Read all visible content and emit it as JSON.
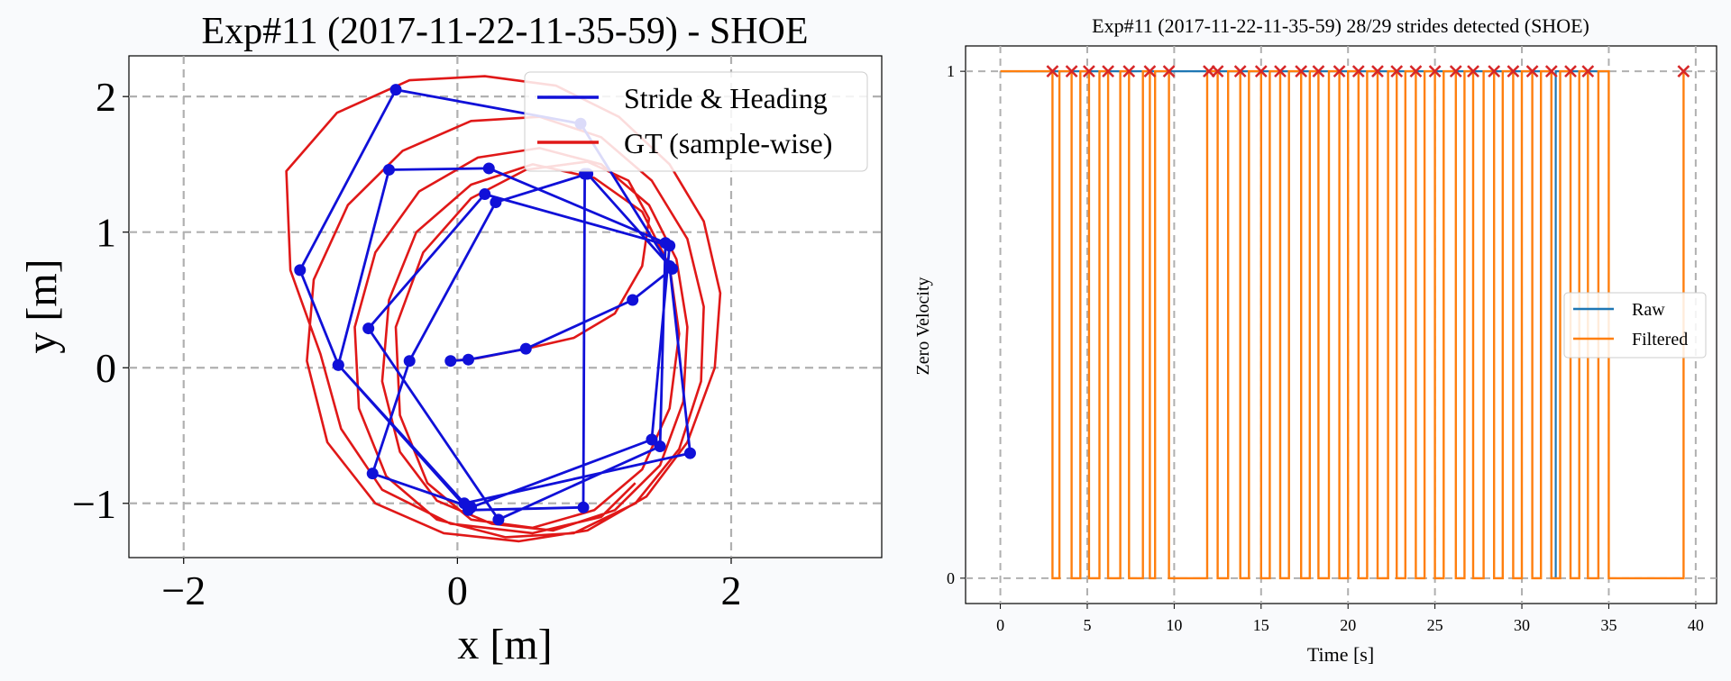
{
  "chart_data": [
    {
      "type": "line",
      "title": "Exp#11 (2017-11-22-11-35-59) - SHOE",
      "xlabel": "x [m]",
      "ylabel": "y [m]",
      "xlim": [
        -2.4,
        3.1
      ],
      "ylim": [
        -1.4,
        2.3
      ],
      "xticks": [
        -2,
        0,
        2
      ],
      "xtick_labels": [
        "−2",
        "0",
        "2"
      ],
      "yticks": [
        -1,
        0,
        1,
        2
      ],
      "ytick_labels": [
        "−1",
        "0",
        "1",
        "2"
      ],
      "grid": true,
      "legend_position": "top-right",
      "colors": {
        "stride": "#1010d8",
        "gt": "#e01818"
      },
      "series": [
        {
          "name": "Stride & Heading",
          "markers": true,
          "points": [
            [
              -0.05,
              0.05
            ],
            [
              0.08,
              0.06
            ],
            [
              0.5,
              0.14
            ],
            [
              1.28,
              0.5
            ],
            [
              1.57,
              0.73
            ],
            [
              0.95,
              1.43
            ],
            [
              0.28,
              1.22
            ],
            [
              -0.35,
              0.05
            ],
            [
              -0.62,
              -0.78
            ],
            [
              0.1,
              -1.03
            ],
            [
              1.42,
              -0.53
            ],
            [
              1.55,
              0.9
            ],
            [
              0.2,
              1.28
            ],
            [
              -0.65,
              0.29
            ],
            [
              0.3,
              -1.12
            ],
            [
              1.48,
              -0.58
            ],
            [
              1.52,
              0.92
            ],
            [
              0.23,
              1.47
            ],
            [
              -0.5,
              1.46
            ],
            [
              -0.87,
              0.02
            ],
            [
              0.05,
              -1.0
            ],
            [
              1.7,
              -0.63
            ],
            [
              1.55,
              0.75
            ],
            [
              0.9,
              1.8
            ],
            [
              -0.45,
              2.05
            ],
            [
              -1.15,
              0.72
            ],
            [
              -0.87,
              0.02
            ],
            [
              0.08,
              -1.05
            ],
            [
              0.92,
              -1.03
            ],
            [
              0.93,
              1.43
            ]
          ]
        },
        {
          "name": "GT (sample-wise)",
          "markers": false,
          "points": [
            [
              -0.05,
              0.05
            ],
            [
              0.15,
              0.07
            ],
            [
              0.5,
              0.14
            ],
            [
              0.85,
              0.22
            ],
            [
              1.15,
              0.4
            ],
            [
              1.35,
              0.75
            ],
            [
              1.4,
              1.1
            ],
            [
              1.25,
              1.38
            ],
            [
              0.95,
              1.52
            ],
            [
              0.5,
              1.46
            ],
            [
              0.1,
              1.25
            ],
            [
              -0.25,
              0.85
            ],
            [
              -0.45,
              0.3
            ],
            [
              -0.42,
              -0.35
            ],
            [
              -0.22,
              -0.85
            ],
            [
              0.1,
              -1.12
            ],
            [
              0.55,
              -1.18
            ],
            [
              1.0,
              -1.05
            ],
            [
              1.35,
              -0.75
            ],
            [
              1.55,
              -0.3
            ],
            [
              1.62,
              0.25
            ],
            [
              1.55,
              0.75
            ],
            [
              1.35,
              1.15
            ],
            [
              1.0,
              1.4
            ],
            [
              0.55,
              1.5
            ],
            [
              0.1,
              1.35
            ],
            [
              -0.3,
              1.0
            ],
            [
              -0.5,
              0.5
            ],
            [
              -0.55,
              -0.1
            ],
            [
              -0.42,
              -0.62
            ],
            [
              -0.15,
              -0.98
            ],
            [
              0.25,
              -1.15
            ],
            [
              0.7,
              -1.2
            ],
            [
              1.15,
              -1.05
            ],
            [
              1.48,
              -0.72
            ],
            [
              1.65,
              -0.25
            ],
            [
              1.68,
              0.3
            ],
            [
              1.6,
              0.8
            ],
            [
              1.4,
              1.2
            ],
            [
              1.05,
              1.5
            ],
            [
              0.6,
              1.62
            ],
            [
              0.15,
              1.55
            ],
            [
              -0.28,
              1.3
            ],
            [
              -0.6,
              0.85
            ],
            [
              -0.75,
              0.3
            ],
            [
              -0.72,
              -0.3
            ],
            [
              -0.52,
              -0.8
            ],
            [
              -0.15,
              -1.12
            ],
            [
              0.35,
              -1.25
            ],
            [
              0.85,
              -1.22
            ],
            [
              1.3,
              -1.0
            ],
            [
              1.62,
              -0.6
            ],
            [
              1.78,
              -0.1
            ],
            [
              1.8,
              0.45
            ],
            [
              1.68,
              0.95
            ],
            [
              1.42,
              1.38
            ],
            [
              1.05,
              1.7
            ],
            [
              0.6,
              1.85
            ],
            [
              0.1,
              1.82
            ],
            [
              -0.4,
              1.6
            ],
            [
              -0.8,
              1.2
            ],
            [
              -1.05,
              0.65
            ],
            [
              -1.1,
              0.05
            ],
            [
              -0.95,
              -0.55
            ],
            [
              -0.6,
              -1.0
            ],
            [
              -0.1,
              -1.22
            ],
            [
              0.45,
              -1.28
            ],
            [
              0.95,
              -1.2
            ],
            [
              1.38,
              -0.95
            ],
            [
              1.68,
              -0.55
            ],
            [
              1.88,
              0.0
            ],
            [
              1.92,
              0.55
            ],
            [
              1.8,
              1.08
            ],
            [
              1.55,
              1.5
            ],
            [
              1.18,
              1.85
            ],
            [
              0.72,
              2.08
            ],
            [
              0.2,
              2.15
            ],
            [
              -0.35,
              2.12
            ],
            [
              -0.88,
              1.88
            ],
            [
              -1.25,
              1.45
            ],
            [
              -1.22,
              0.72
            ],
            [
              -1.0,
              0.1
            ],
            [
              -0.85,
              -0.45
            ],
            [
              -0.55,
              -0.9
            ],
            [
              -0.05,
              -1.15
            ],
            [
              0.55,
              -1.22
            ],
            [
              1.05,
              -1.1
            ],
            [
              1.3,
              -0.85
            ]
          ]
        }
      ]
    },
    {
      "type": "line",
      "title": "Exp#11 (2017-11-22-11-35-59) 28/29 strides detected (SHOE)",
      "xlabel": "Time [s]",
      "ylabel": "Zero Velocity",
      "xlim": [
        -2.0,
        41.2
      ],
      "ylim": [
        -0.05,
        1.05
      ],
      "xticks": [
        0,
        5,
        10,
        15,
        20,
        25,
        30,
        35,
        40
      ],
      "xtick_labels": [
        "0",
        "5",
        "10",
        "15",
        "20",
        "25",
        "30",
        "35",
        "40"
      ],
      "yticks": [
        0,
        1
      ],
      "ytick_labels": [
        "0",
        "1"
      ],
      "grid": true,
      "legend_position": "center-right",
      "colors": {
        "raw": "#1f77b4",
        "filtered": "#ff7f0e",
        "stride_marker": "#d62728"
      },
      "series": [
        {
          "name": "Raw",
          "x": [
            0,
            31.7,
            31.7,
            31.95,
            31.95,
            35.0
          ],
          "y": [
            1,
            1,
            0,
            0,
            1,
            1
          ]
        },
        {
          "name": "Filtered",
          "pulses": [
            [
              3.0,
              3.4
            ],
            [
              4.1,
              4.6
            ],
            [
              5.1,
              5.7
            ],
            [
              6.2,
              6.9
            ],
            [
              7.4,
              8.2
            ],
            [
              8.6,
              8.9
            ],
            [
              9.7,
              11.9
            ],
            [
              12.5,
              13.1
            ],
            [
              13.8,
              14.3
            ],
            [
              15.0,
              15.5
            ],
            [
              16.1,
              16.6
            ],
            [
              17.3,
              17.8
            ],
            [
              18.3,
              18.9
            ],
            [
              19.5,
              20.0
            ],
            [
              20.6,
              21.1
            ],
            [
              21.7,
              22.3
            ],
            [
              22.8,
              23.3
            ],
            [
              23.9,
              24.4
            ],
            [
              25.0,
              25.5
            ],
            [
              26.2,
              26.7
            ],
            [
              27.2,
              27.8
            ],
            [
              28.4,
              28.9
            ],
            [
              29.5,
              30.0
            ],
            [
              30.6,
              31.1
            ],
            [
              31.7,
              32.2
            ],
            [
              32.8,
              33.3
            ],
            [
              33.8,
              34.4
            ],
            [
              35.0,
              39.3
            ]
          ]
        }
      ],
      "stride_markers": {
        "x": [
          3.0,
          4.1,
          5.1,
          6.2,
          7.4,
          8.6,
          9.7,
          12.0,
          12.5,
          13.8,
          15.0,
          16.1,
          17.3,
          18.3,
          19.5,
          20.6,
          21.7,
          22.8,
          23.9,
          25.0,
          26.2,
          27.2,
          28.4,
          29.5,
          30.6,
          31.7,
          32.8,
          33.8,
          39.3
        ],
        "y": 1
      }
    }
  ]
}
